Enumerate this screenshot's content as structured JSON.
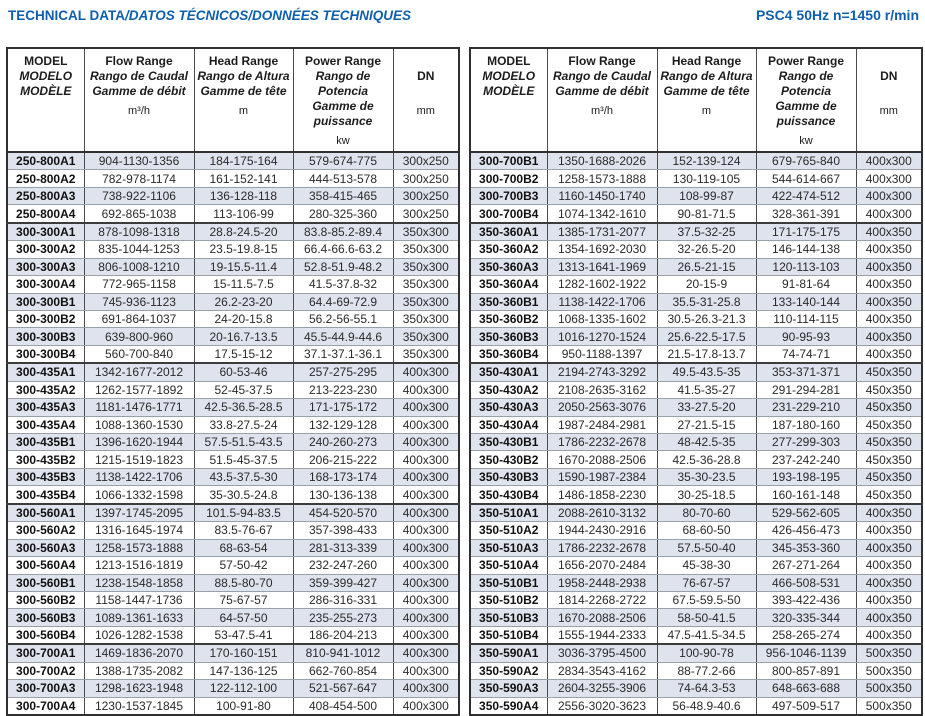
{
  "colors": {
    "accent": "#0e5fae",
    "shade": "#dee3ee",
    "border_outer": "#2f2f2f"
  },
  "title": {
    "main": "TECHNICAL DATA",
    "rest": "/DATOS TÉCNICOS/DONNÉES TECHNIQUES",
    "right": "PSC4 50Hz  n=1450 r/min"
  },
  "header": {
    "model_lines": [
      "MODEL",
      "MODELO",
      "MODÈLE"
    ],
    "columns": [
      {
        "lines": [
          "Flow Range",
          "Rango de Caudal",
          "Gamme de débit"
        ],
        "unit": "m³/h"
      },
      {
        "lines": [
          "Head Range",
          "Rango de Altura",
          "Gamme de tête"
        ],
        "unit": "m"
      },
      {
        "lines": [
          "Power Range",
          "Rango de Potencia",
          "Gamme de puissance"
        ],
        "unit": "kw"
      },
      {
        "lines": [
          "DN"
        ],
        "unit": "mm"
      }
    ]
  },
  "tables": [
    {
      "rows": [
        [
          "250-800A1",
          "904-1130-1356",
          "184-175-164",
          "579-674-775",
          "300x250"
        ],
        [
          "250-800A2",
          "782-978-1174",
          "161-152-141",
          "444-513-578",
          "300x250"
        ],
        [
          "250-800A3",
          "738-922-1106",
          "136-128-118",
          "358-415-465",
          "300x250"
        ],
        [
          "250-800A4",
          "692-865-1038",
          "113-106-99",
          "280-325-360",
          "300x250"
        ],
        [
          "300-300A1",
          "878-1098-1318",
          "28.8-24.5-20",
          "83.8-85.2-89.4",
          "350x300"
        ],
        [
          "300-300A2",
          "835-1044-1253",
          "23.5-19.8-15",
          "66.4-66.6-63.2",
          "350x300"
        ],
        [
          "300-300A3",
          "806-1008-1210",
          "19-15.5-11.4",
          "52.8-51.9-48.2",
          "350x300"
        ],
        [
          "300-300A4",
          "772-965-1158",
          "15-11.5-7.5",
          "41.5-37.8-32",
          "350x300"
        ],
        [
          "300-300B1",
          "745-936-1123",
          "26.2-23-20",
          "64.4-69-72.9",
          "350x300"
        ],
        [
          "300-300B2",
          "691-864-1037",
          "24-20-15.8",
          "56.2-56-55.1",
          "350x300"
        ],
        [
          "300-300B3",
          "639-800-960",
          "20-16.7-13.5",
          "45.5-44.9-44.6",
          "350x300"
        ],
        [
          "300-300B4",
          "560-700-840",
          "17.5-15-12",
          "37.1-37.1-36.1",
          "350x300"
        ],
        [
          "300-435A1",
          "1342-1677-2012",
          "60-53-46",
          "257-275-295",
          "400x300"
        ],
        [
          "300-435A2",
          "1262-1577-1892",
          "52-45-37.5",
          "213-223-230",
          "400x300"
        ],
        [
          "300-435A3",
          "1181-1476-1771",
          "42.5-36.5-28.5",
          "171-175-172",
          "400x300"
        ],
        [
          "300-435A4",
          "1088-1360-1530",
          "33.8-27.5-24",
          "132-129-128",
          "400x300"
        ],
        [
          "300-435B1",
          "1396-1620-1944",
          "57.5-51.5-43.5",
          "240-260-273",
          "400x300"
        ],
        [
          "300-435B2",
          "1215-1519-1823",
          "51.5-45-37.5",
          "206-215-222",
          "400x300"
        ],
        [
          "300-435B3",
          "1138-1422-1706",
          "43.5-37.5-30",
          "168-173-174",
          "400x300"
        ],
        [
          "300-435B4",
          "1066-1332-1598",
          "35-30.5-24.8",
          "130-136-138",
          "400x300"
        ],
        [
          "300-560A1",
          "1397-1745-2095",
          "101.5-94-83.5",
          "454-520-570",
          "400x300"
        ],
        [
          "300-560A2",
          "1316-1645-1974",
          "83.5-76-67",
          "357-398-433",
          "400x300"
        ],
        [
          "300-560A3",
          "1258-1573-1888",
          "68-63-54",
          "281-313-339",
          "400x300"
        ],
        [
          "300-560A4",
          "1213-1516-1819",
          "57-50-42",
          "232-247-260",
          "400x300"
        ],
        [
          "300-560B1",
          "1238-1548-1858",
          "88.5-80-70",
          "359-399-427",
          "400x300"
        ],
        [
          "300-560B2",
          "1158-1447-1736",
          "75-67-57",
          "286-316-331",
          "400x300"
        ],
        [
          "300-560B3",
          "1089-1361-1633",
          "64-57-50",
          "235-255-273",
          "400x300"
        ],
        [
          "300-560B4",
          "1026-1282-1538",
          "53-47.5-41",
          "186-204-213",
          "400x300"
        ],
        [
          "300-700A1",
          "1469-1836-2070",
          "170-160-151",
          "810-941-1012",
          "400x300"
        ],
        [
          "300-700A2",
          "1388-1735-2082",
          "147-136-125",
          "662-760-854",
          "400x300"
        ],
        [
          "300-700A3",
          "1298-1623-1948",
          "122-112-100",
          "521-567-647",
          "400x300"
        ],
        [
          "300-700A4",
          "1230-1537-1845",
          "100-91-80",
          "408-454-500",
          "400x300"
        ]
      ]
    },
    {
      "rows": [
        [
          "300-700B1",
          "1350-1688-2026",
          "152-139-124",
          "679-765-840",
          "400x300"
        ],
        [
          "300-700B2",
          "1258-1573-1888",
          "130-119-105",
          "544-614-667",
          "400x300"
        ],
        [
          "300-700B3",
          "1160-1450-1740",
          "108-99-87",
          "422-474-512",
          "400x300"
        ],
        [
          "300-700B4",
          "1074-1342-1610",
          "90-81-71.5",
          "328-361-391",
          "400x300"
        ],
        [
          "350-360A1",
          "1385-1731-2077",
          "37.5-32-25",
          "171-175-175",
          "400x350"
        ],
        [
          "350-360A2",
          "1354-1692-2030",
          "32-26.5-20",
          "146-144-138",
          "400x350"
        ],
        [
          "350-360A3",
          "1313-1641-1969",
          "26.5-21-15",
          "120-113-103",
          "400x350"
        ],
        [
          "350-360A4",
          "1282-1602-1922",
          "20-15-9",
          "91-81-64",
          "400x350"
        ],
        [
          "350-360B1",
          "1138-1422-1706",
          "35.5-31-25.8",
          "133-140-144",
          "400x350"
        ],
        [
          "350-360B2",
          "1068-1335-1602",
          "30.5-26.3-21.3",
          "110-114-115",
          "400x350"
        ],
        [
          "350-360B3",
          "1016-1270-1524",
          "25.6-22.5-17.5",
          "90-95-93",
          "400x350"
        ],
        [
          "350-360B4",
          "950-1188-1397",
          "21.5-17.8-13.7",
          "74-74-71",
          "400x350"
        ],
        [
          "350-430A1",
          "2194-2743-3292",
          "49.5-43.5-35",
          "353-371-371",
          "450x350"
        ],
        [
          "350-430A2",
          "2108-2635-3162",
          "41.5-35-27",
          "291-294-281",
          "450x350"
        ],
        [
          "350-430A3",
          "2050-2563-3076",
          "33-27.5-20",
          "231-229-210",
          "450x350"
        ],
        [
          "350-430A4",
          "1987-2484-2981",
          "27-21.5-15",
          "187-180-160",
          "450x350"
        ],
        [
          "350-430B1",
          "1786-2232-2678",
          "48-42.5-35",
          "277-299-303",
          "450x350"
        ],
        [
          "350-430B2",
          "1670-2088-2506",
          "42.5-36-28.8",
          "237-242-240",
          "450x350"
        ],
        [
          "350-430B3",
          "1590-1987-2384",
          "35-30-23.5",
          "193-198-195",
          "450x350"
        ],
        [
          "350-430B4",
          "1486-1858-2230",
          "30-25-18.5",
          "160-161-148",
          "450x350"
        ],
        [
          "350-510A1",
          "2088-2610-3132",
          "80-70-60",
          "529-562-605",
          "400x350"
        ],
        [
          "350-510A2",
          "1944-2430-2916",
          "68-60-50",
          "426-456-473",
          "400x350"
        ],
        [
          "350-510A3",
          "1786-2232-2678",
          "57.5-50-40",
          "345-353-360",
          "400x350"
        ],
        [
          "350-510A4",
          "1656-2070-2484",
          "45-38-30",
          "267-271-264",
          "400x350"
        ],
        [
          "350-510B1",
          "1958-2448-2938",
          "76-67-57",
          "466-508-531",
          "400x350"
        ],
        [
          "350-510B2",
          "1814-2268-2722",
          "67.5-59.5-50",
          "393-422-436",
          "400x350"
        ],
        [
          "350-510B3",
          "1670-2088-2506",
          "58-50-41.5",
          "320-335-344",
          "400x350"
        ],
        [
          "350-510B4",
          "1555-1944-2333",
          "47.5-41.5-34.5",
          "258-265-274",
          "400x350"
        ],
        [
          "350-590A1",
          "3036-3795-4500",
          "100-90-78",
          "956-1046-1139",
          "500x350"
        ],
        [
          "350-590A2",
          "2834-3543-4162",
          "88-77.2-66",
          "800-857-891",
          "500x350"
        ],
        [
          "350-590A3",
          "2604-3255-3906",
          "74-64.3-53",
          "648-663-688",
          "500x350"
        ],
        [
          "350-590A4",
          "2556-3020-3623",
          "56-48.9-40.6",
          "497-509-517",
          "500x350"
        ]
      ]
    }
  ]
}
